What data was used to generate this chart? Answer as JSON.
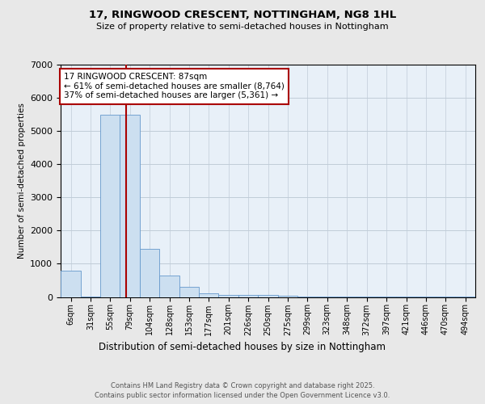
{
  "title1": "17, RINGWOOD CRESCENT, NOTTINGHAM, NG8 1HL",
  "title2": "Size of property relative to semi-detached houses in Nottingham",
  "xlabel": "Distribution of semi-detached houses by size in Nottingham",
  "ylabel": "Number of semi-detached properties",
  "footnote1": "Contains HM Land Registry data © Crown copyright and database right 2025.",
  "footnote2": "Contains public sector information licensed under the Open Government Licence v3.0.",
  "annotation_line1": "17 RINGWOOD CRESCENT: 87sqm",
  "annotation_line2": "← 61% of semi-detached houses are smaller (8,764)",
  "annotation_line3": "37% of semi-detached houses are larger (5,361) →",
  "bar_labels": [
    "6sqm",
    "31sqm",
    "55sqm",
    "79sqm",
    "104sqm",
    "128sqm",
    "153sqm",
    "177sqm",
    "201sqm",
    "226sqm",
    "250sqm",
    "275sqm",
    "299sqm",
    "323sqm",
    "348sqm",
    "372sqm",
    "397sqm",
    "421sqm",
    "446sqm",
    "470sqm",
    "494sqm"
  ],
  "bar_left_edges": [
    6,
    31,
    55,
    79,
    104,
    128,
    153,
    177,
    201,
    226,
    250,
    275,
    299,
    323,
    348,
    372,
    397,
    421,
    446,
    470,
    494
  ],
  "bar_widths": [
    25,
    24,
    24,
    25,
    24,
    25,
    24,
    24,
    25,
    24,
    25,
    24,
    24,
    25,
    24,
    25,
    24,
    25,
    24,
    24,
    25
  ],
  "bar_heights": [
    800,
    5,
    5500,
    5500,
    1450,
    650,
    300,
    120,
    70,
    60,
    50,
    30,
    20,
    10,
    5,
    5,
    3,
    2,
    2,
    1,
    1
  ],
  "bar_color": "#ccdff0",
  "bar_edge_color": "#6699cc",
  "vline_x": 87,
  "vline_color": "#aa0000",
  "ylim": [
    0,
    7000
  ],
  "xlim": [
    6,
    519
  ],
  "yticks": [
    0,
    1000,
    2000,
    3000,
    4000,
    5000,
    6000,
    7000
  ],
  "bg_color": "#e8e8e8",
  "plot_bg_color": "#e8f0f8",
  "grid_color": "#c0ccd8"
}
